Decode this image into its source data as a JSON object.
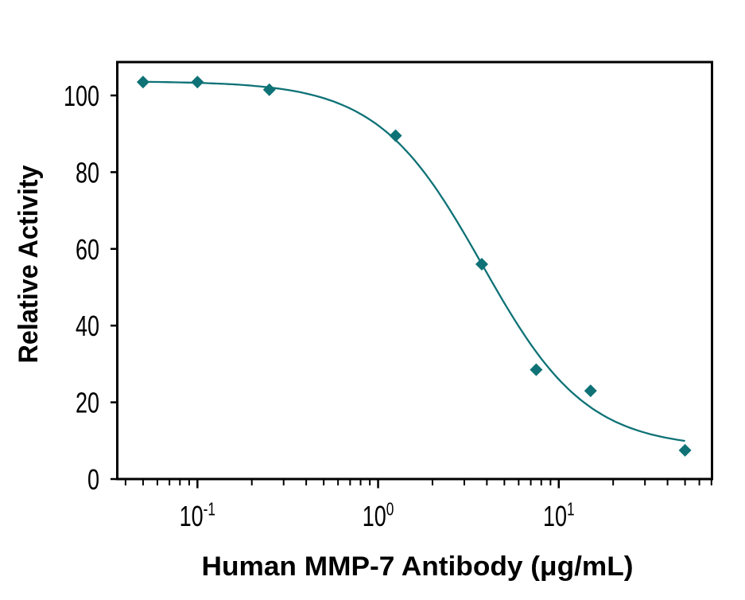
{
  "page": {
    "background": "#ffffff"
  },
  "chart_data": {
    "type": "line",
    "title": "",
    "xlabel": "Human MMP-7 Antibody (μg/mL)",
    "ylabel": "Relative Activity",
    "xscale": "log",
    "xlim": [
      0.036,
      70.5
    ],
    "ylim": [
      0,
      108.7
    ],
    "x": [
      0.05,
      0.1,
      0.25,
      1.25,
      3.75,
      7.5,
      15,
      50
    ],
    "y": [
      103.5,
      103.5,
      101.5,
      89.5,
      56,
      28.5,
      23,
      7.5
    ],
    "xticks": [
      {
        "mantissa": "10",
        "exponent": "-1",
        "value": 0.1
      },
      {
        "mantissa": "10",
        "exponent": "0",
        "value": 1
      },
      {
        "mantissa": "10",
        "exponent": "1",
        "value": 10
      }
    ],
    "yticks": [
      0,
      20,
      40,
      60,
      80,
      100
    ],
    "fit": {
      "model": "4PL",
      "top": 103.7,
      "bottom": 8,
      "ic50": 3.77,
      "hill": 1.5,
      "x_range": [
        0.05,
        50
      ]
    },
    "series_color": "#0e7276",
    "axis_color": "#000000",
    "marker": "diamond",
    "grid": false,
    "legend_position": "none"
  }
}
